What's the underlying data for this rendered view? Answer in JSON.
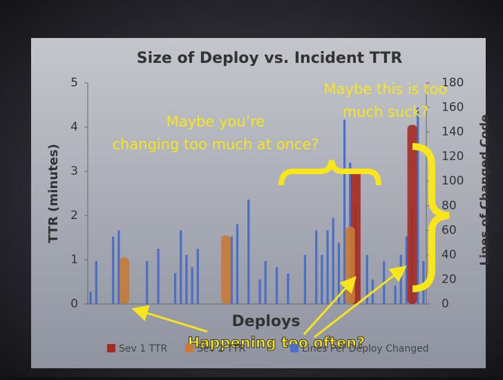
{
  "chart_data": {
    "type": "bar",
    "title": "Size of Deploy vs. Incident TTR",
    "x_label": "Deploys",
    "y_label": "TTR (minutes)",
    "y2_label": "Lines of Changed Code",
    "categories": [
      null,
      null,
      null,
      null,
      null,
      null,
      null,
      null,
      null,
      null,
      null,
      null,
      null,
      null,
      null,
      null,
      null,
      null,
      null,
      null,
      null,
      null,
      null,
      null,
      null,
      null,
      null,
      null,
      null,
      null,
      null,
      null,
      null,
      null,
      null,
      null,
      null,
      null,
      null,
      null,
      null,
      null,
      null,
      null,
      null,
      null,
      null,
      null,
      null,
      null,
      null,
      null,
      null,
      null,
      null,
      null,
      null,
      null,
      null,
      null
    ],
    "series": [
      {
        "name": "Sev 1 TTR",
        "color": "#a52a22",
        "values": [
          null,
          null,
          null,
          null,
          null,
          null,
          null,
          null,
          null,
          null,
          null,
          null,
          null,
          null,
          null,
          null,
          null,
          null,
          null,
          null,
          null,
          null,
          null,
          null,
          null,
          null,
          null,
          null,
          null,
          null,
          null,
          null,
          null,
          null,
          null,
          null,
          null,
          null,
          null,
          null,
          null,
          null,
          null,
          null,
          null,
          null,
          null,
          3.05,
          null,
          null,
          null,
          null,
          null,
          null,
          null,
          null,
          null,
          4.05,
          null,
          null
        ]
      },
      {
        "name": "Sev 2 TTR",
        "color": "#c87a35",
        "values": [
          null,
          null,
          null,
          null,
          null,
          null,
          1.05,
          null,
          null,
          null,
          null,
          null,
          null,
          null,
          null,
          null,
          null,
          null,
          null,
          null,
          null,
          null,
          null,
          null,
          1.55,
          null,
          null,
          null,
          null,
          null,
          null,
          null,
          null,
          null,
          null,
          null,
          null,
          null,
          null,
          null,
          null,
          null,
          null,
          null,
          null,
          null,
          1.75,
          null,
          null,
          null,
          null,
          null,
          null,
          null,
          null,
          null,
          null,
          null,
          null,
          null
        ]
      },
      {
        "name": "Lines Per Deploy Changed",
        "color": "#4a6fc4",
        "axis": "y2",
        "values": [
          10,
          35,
          0,
          0,
          55,
          60,
          8,
          0,
          0,
          0,
          35,
          0,
          45,
          0,
          0,
          25,
          60,
          40,
          30,
          45,
          0,
          0,
          0,
          0,
          0,
          55,
          65,
          0,
          85,
          0,
          20,
          35,
          0,
          30,
          0,
          25,
          0,
          0,
          40,
          0,
          60,
          40,
          60,
          70,
          50,
          150,
          115,
          80,
          0,
          40,
          20,
          0,
          35,
          0,
          15,
          40,
          55,
          80,
          160,
          35
        ]
      }
    ],
    "ylim": [
      0,
      5
    ],
    "yticks": [
      0,
      1,
      2,
      3,
      4,
      5
    ],
    "y2lim": [
      0,
      180
    ],
    "y2ticks": [
      0,
      20,
      40,
      60,
      80,
      100,
      120,
      140,
      160,
      180
    ],
    "grid": false,
    "legend": "bottom",
    "annotations": [
      {
        "lines": [
          "Maybe you’re",
          "changing too much at once?"
        ]
      },
      {
        "lines": [
          "Maybe this is too",
          "much suck?"
        ]
      },
      {
        "lines": [
          "Happening too often?"
        ]
      }
    ]
  }
}
